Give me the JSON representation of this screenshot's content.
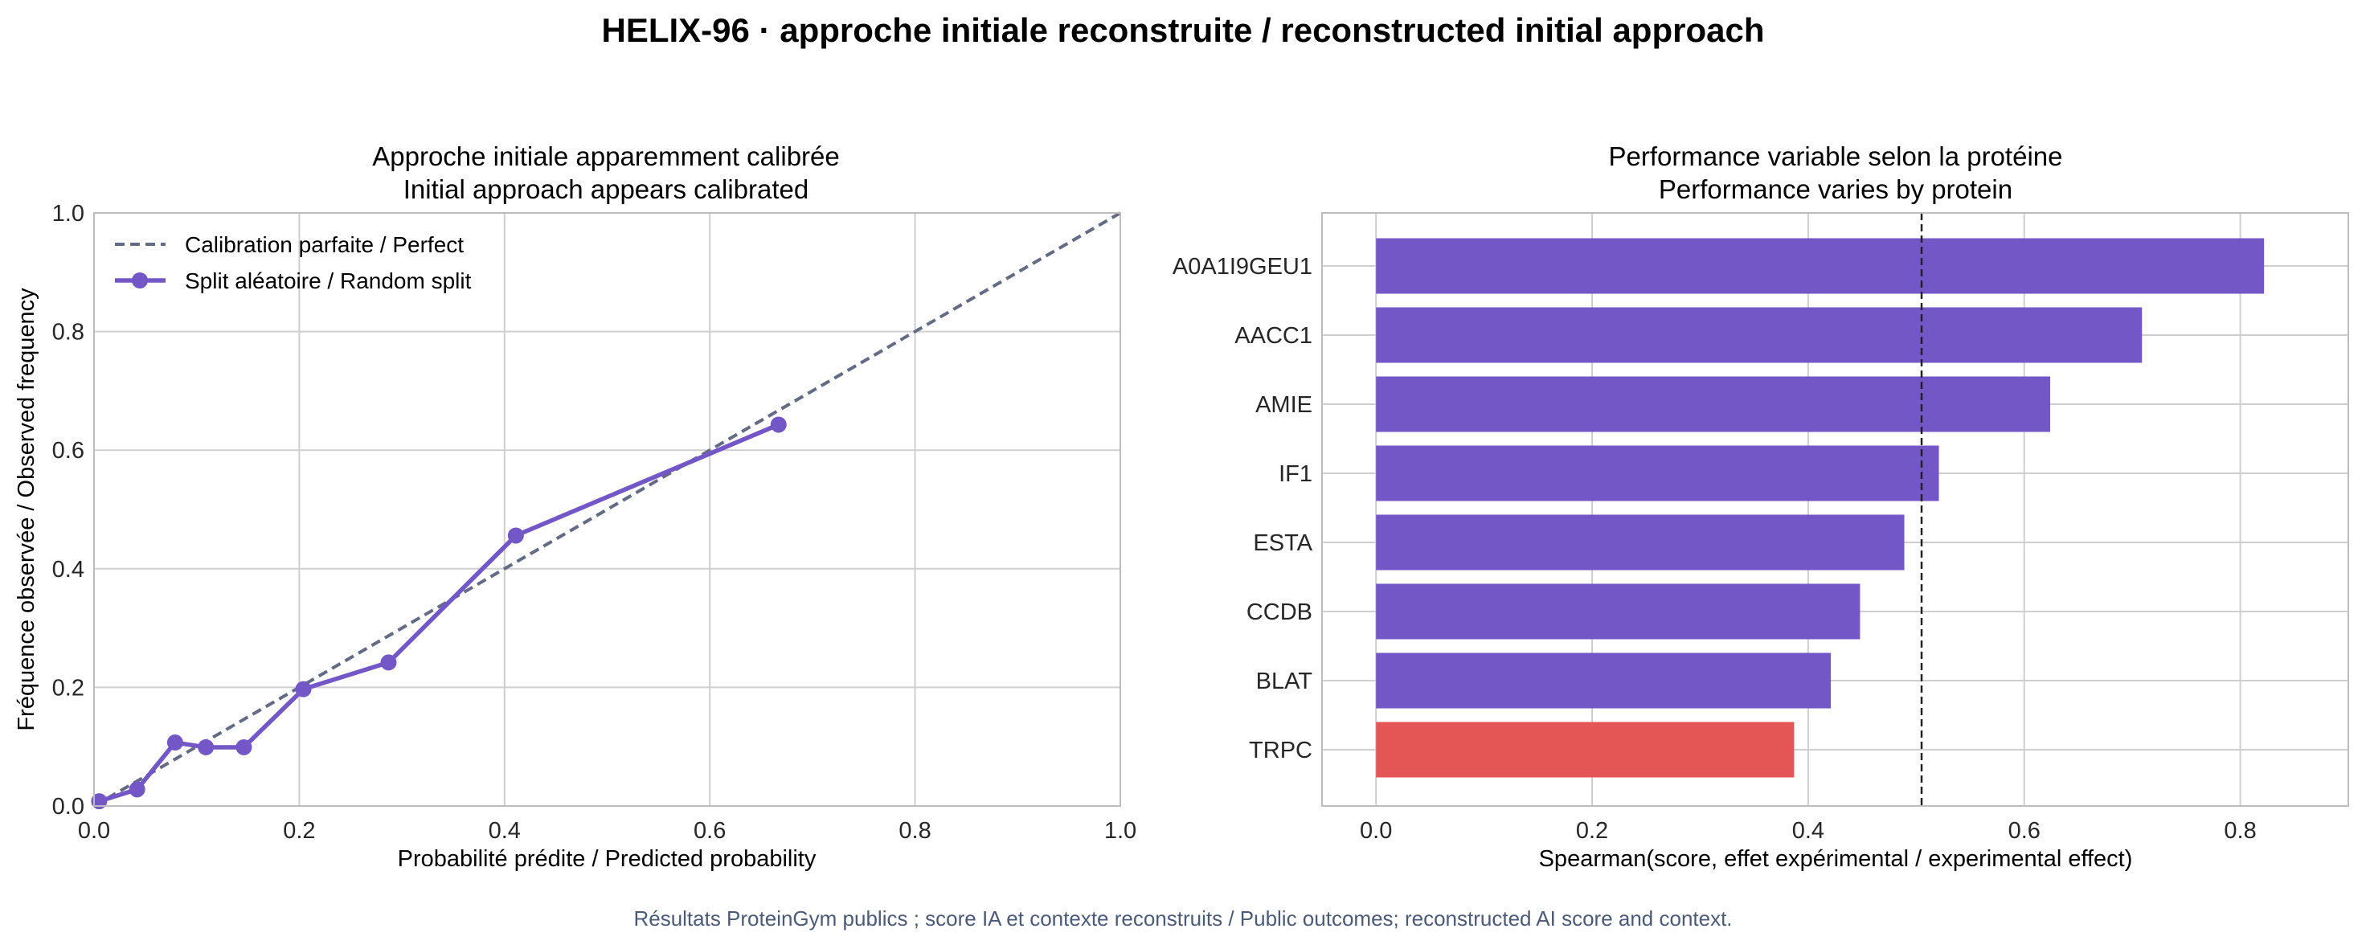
{
  "suptitle": "HELIX-96 · approche initiale reconstruite / reconstructed initial approach",
  "footer": "Résultats ProteinGym publics ; score IA et contexte reconstruits / Public outcomes; reconstructed AI score and context.",
  "colors": {
    "purple": "#7357c6",
    "red": "#e45556",
    "diagonal": "#636b85",
    "grid": "#cfcfcf",
    "spine": "#bdbdbd"
  },
  "chart_data": [
    {
      "type": "line",
      "title_line1": "Approche initiale apparemment calibrée",
      "title_line2": "Initial approach appears calibrated",
      "xlabel": "Probabilité prédite / Predicted probability",
      "ylabel": "Fréquence observée / Observed frequency",
      "xlim": [
        0,
        1
      ],
      "ylim": [
        0,
        1
      ],
      "xticks": [
        "0.0",
        "0.2",
        "0.4",
        "0.6",
        "0.8",
        "1.0"
      ],
      "yticks": [
        "0.0",
        "0.2",
        "0.4",
        "0.6",
        "0.8",
        "1.0"
      ],
      "grid": true,
      "legend_position": "top-left",
      "series": [
        {
          "name": "Calibration parfaite / Perfect",
          "style": "dashed",
          "x": [
            0,
            1
          ],
          "y": [
            0,
            1
          ]
        },
        {
          "name": "Split aléatoire / Random split",
          "style": "line-markers",
          "x": [
            0.005,
            0.042,
            0.079,
            0.109,
            0.146,
            0.204,
            0.287,
            0.411,
            0.667
          ],
          "y": [
            0.008,
            0.028,
            0.107,
            0.099,
            0.099,
            0.197,
            0.242,
            0.456,
            0.643
          ]
        }
      ]
    },
    {
      "type": "bar",
      "orientation": "horizontal",
      "title_line1": "Performance variable selon la protéine",
      "title_line2": "Performance varies by protein",
      "xlabel": "Spearman(score, effet expérimental / experimental effect)",
      "xlim": [
        -0.05,
        0.9
      ],
      "xticks": [
        "0.0",
        "0.2",
        "0.4",
        "0.6",
        "0.8"
      ],
      "grid": true,
      "categories": [
        "A0A1I9GEU1",
        "AACC1",
        "AMIE",
        "IF1",
        "ESTA",
        "CCDB",
        "BLAT",
        "TRPC"
      ],
      "values": [
        0.822,
        0.709,
        0.624,
        0.521,
        0.489,
        0.448,
        0.421,
        0.387
      ],
      "highlighted": [
        "TRPC"
      ],
      "reference_line_x": 0.505
    }
  ]
}
